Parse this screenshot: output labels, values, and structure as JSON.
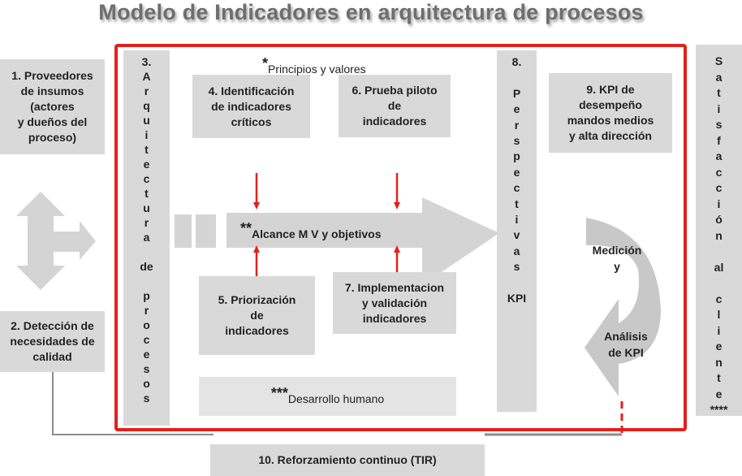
{
  "title": "Modelo de Indicadores en arquitectura de procesos",
  "colors": {
    "frame": "#e3201b",
    "box": "#d9d9d9",
    "arrow": "#d4d4d4",
    "connector": "#8c8c8c"
  },
  "boxes": {
    "b1": "1. Proveedores\nde insumos\n(actores\ny dueños del\nproceso)",
    "b2": "2. Detección de\nnecesidades de\ncalidad",
    "b3": "3.\nA\nr\nq\nu\ni\nt\ne\nc\nt\nu\nr\na\n\nde\n\np\nr\no\nc\ne\ns\no\ns",
    "b4": "4. Identificación\nde indicadores\ncríticos",
    "b5": "5. Priorización\nde\nindicadores",
    "b6": "6. Prueba piloto\nde\nindicadores",
    "b7": "7. Implementacion\ny validación\nindicadores",
    "b8": "8.\n\nP\ne\nr\ns\np\ne\nc\nt\ni\nv\na\ns\n\nKPI",
    "b9": "9. KPI de\ndesempeño\nmandos  medios\ny alta dirección",
    "b10": "10. Reforzamiento continuo (TIR)",
    "satisfaccion": "S\na\nt\ni\ns\nf\na\nc\nc\ni\nó\nn\n\nal\n\nc\nl\ni\ne\nn\nt\ne\n****"
  },
  "notes": {
    "principios_mark": "*",
    "principios": "Principios y valores",
    "alcance_mark": "**",
    "alcance": "Alcance  M V y objetivos",
    "desarrollo_mark": "***",
    "desarrollo": "Desarrollo humano"
  },
  "cycle": {
    "medicion": "Medición\ny",
    "analisis": "Análisis\nde KPI"
  }
}
